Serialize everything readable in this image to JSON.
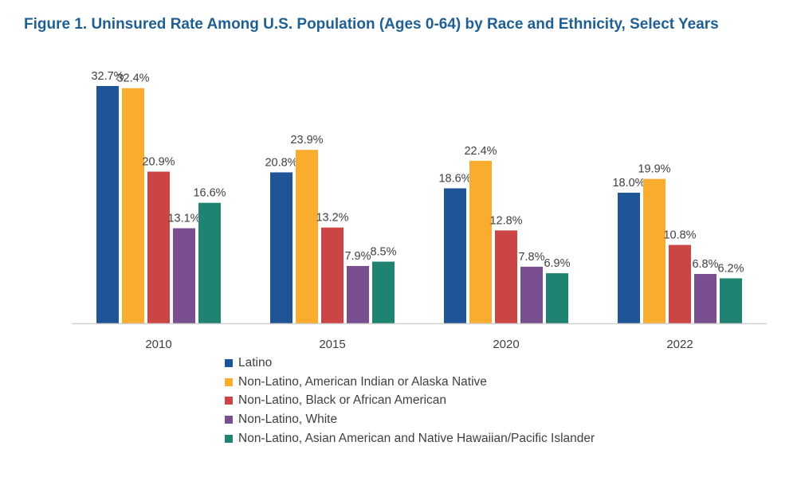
{
  "chart_data": {
    "type": "bar",
    "title": "Figure 1. Uninsured Rate Among U.S. Population (Ages 0-64) by Race and Ethnicity, Select Years",
    "categories": [
      "2010",
      "2015",
      "2020",
      "2022"
    ],
    "series": [
      {
        "name": "Latino",
        "color": "#1f5597",
        "values": [
          32.7,
          20.8,
          18.6,
          18.0
        ],
        "labels": [
          "32.7%",
          "20.8%",
          "18.6%",
          "18.0%"
        ]
      },
      {
        "name": "Non-Latino, American Indian or Alaska Native",
        "color": "#f9ac2d",
        "values": [
          32.4,
          23.9,
          22.4,
          19.9
        ],
        "labels": [
          "32.4%",
          "23.9%",
          "22.4%",
          "19.9%"
        ]
      },
      {
        "name": "Non-Latino, Black or African American",
        "color": "#cc4545",
        "values": [
          20.9,
          13.2,
          12.8,
          10.8
        ],
        "labels": [
          "20.9%",
          "13.2%",
          "12.8%",
          "10.8%"
        ]
      },
      {
        "name": "Non-Latino, White",
        "color": "#7a4f8f",
        "values": [
          13.1,
          7.9,
          7.8,
          6.8
        ],
        "labels": [
          "13.1%",
          "7.9%",
          "7.8%",
          "6.8%"
        ]
      },
      {
        "name": "Non-Latino, Asian American and Native Hawaiian/Pacific Islander",
        "color": "#1e8471",
        "values": [
          16.6,
          8.5,
          6.9,
          6.2
        ],
        "labels": [
          "16.6%",
          "8.5%",
          "6.9%",
          "6.2%"
        ]
      }
    ],
    "xlabel": "",
    "ylabel": "",
    "ylim": [
      0,
      35
    ],
    "grid": false,
    "legend_position": "bottom"
  }
}
